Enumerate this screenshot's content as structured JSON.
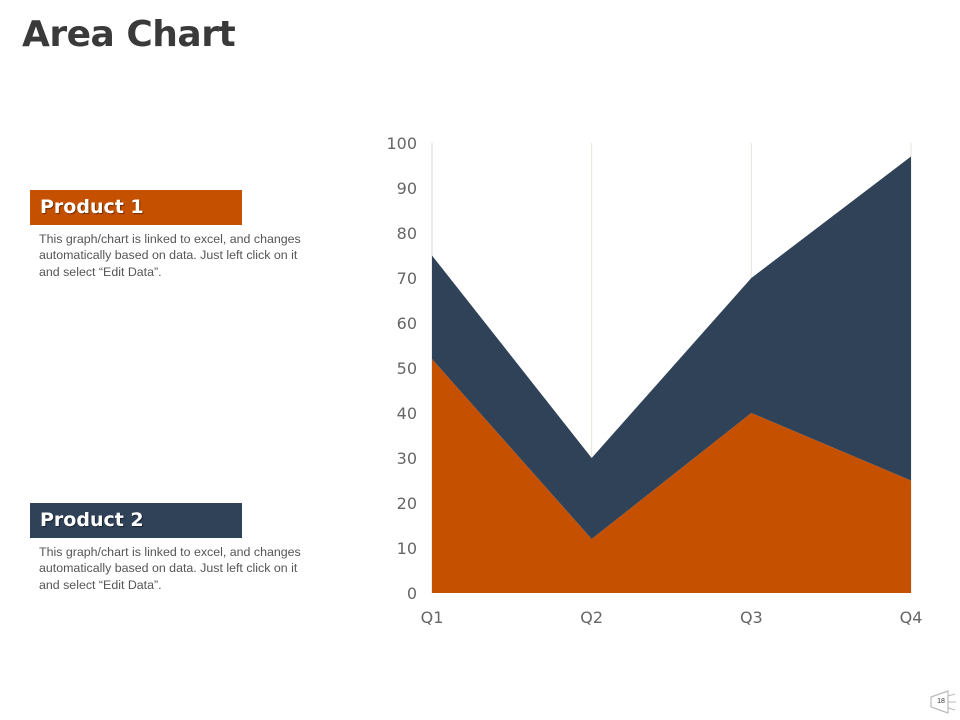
{
  "page": {
    "title": "Area Chart",
    "page_number": "18"
  },
  "legend": [
    {
      "title": "Product 1",
      "color": "#c55100",
      "description": "This graph/chart is linked to excel, and changes automatically based on data. Just left click on it and select “Edit Data”."
    },
    {
      "title": "Product 2",
      "color": "#2f4258",
      "description": "This graph/chart is linked to excel, and changes automatically based on data. Just left click on it and select “Edit Data”."
    }
  ],
  "chart_data": {
    "type": "area",
    "stacked": true,
    "categories": [
      "Q1",
      "Q2",
      "Q3",
      "Q4"
    ],
    "series": [
      {
        "name": "Product 1",
        "values": [
          52,
          12,
          40,
          25
        ],
        "color": "#c55100"
      },
      {
        "name": "Product 2",
        "values": [
          23,
          18,
          30,
          72
        ],
        "color": "#2f4258"
      }
    ],
    "yticks": [
      0,
      10,
      20,
      30,
      40,
      50,
      60,
      70,
      80,
      90,
      100
    ],
    "ylim": [
      0,
      100
    ],
    "grid": "vertical-category-lines",
    "title": "",
    "xlabel": "",
    "ylabel": ""
  }
}
